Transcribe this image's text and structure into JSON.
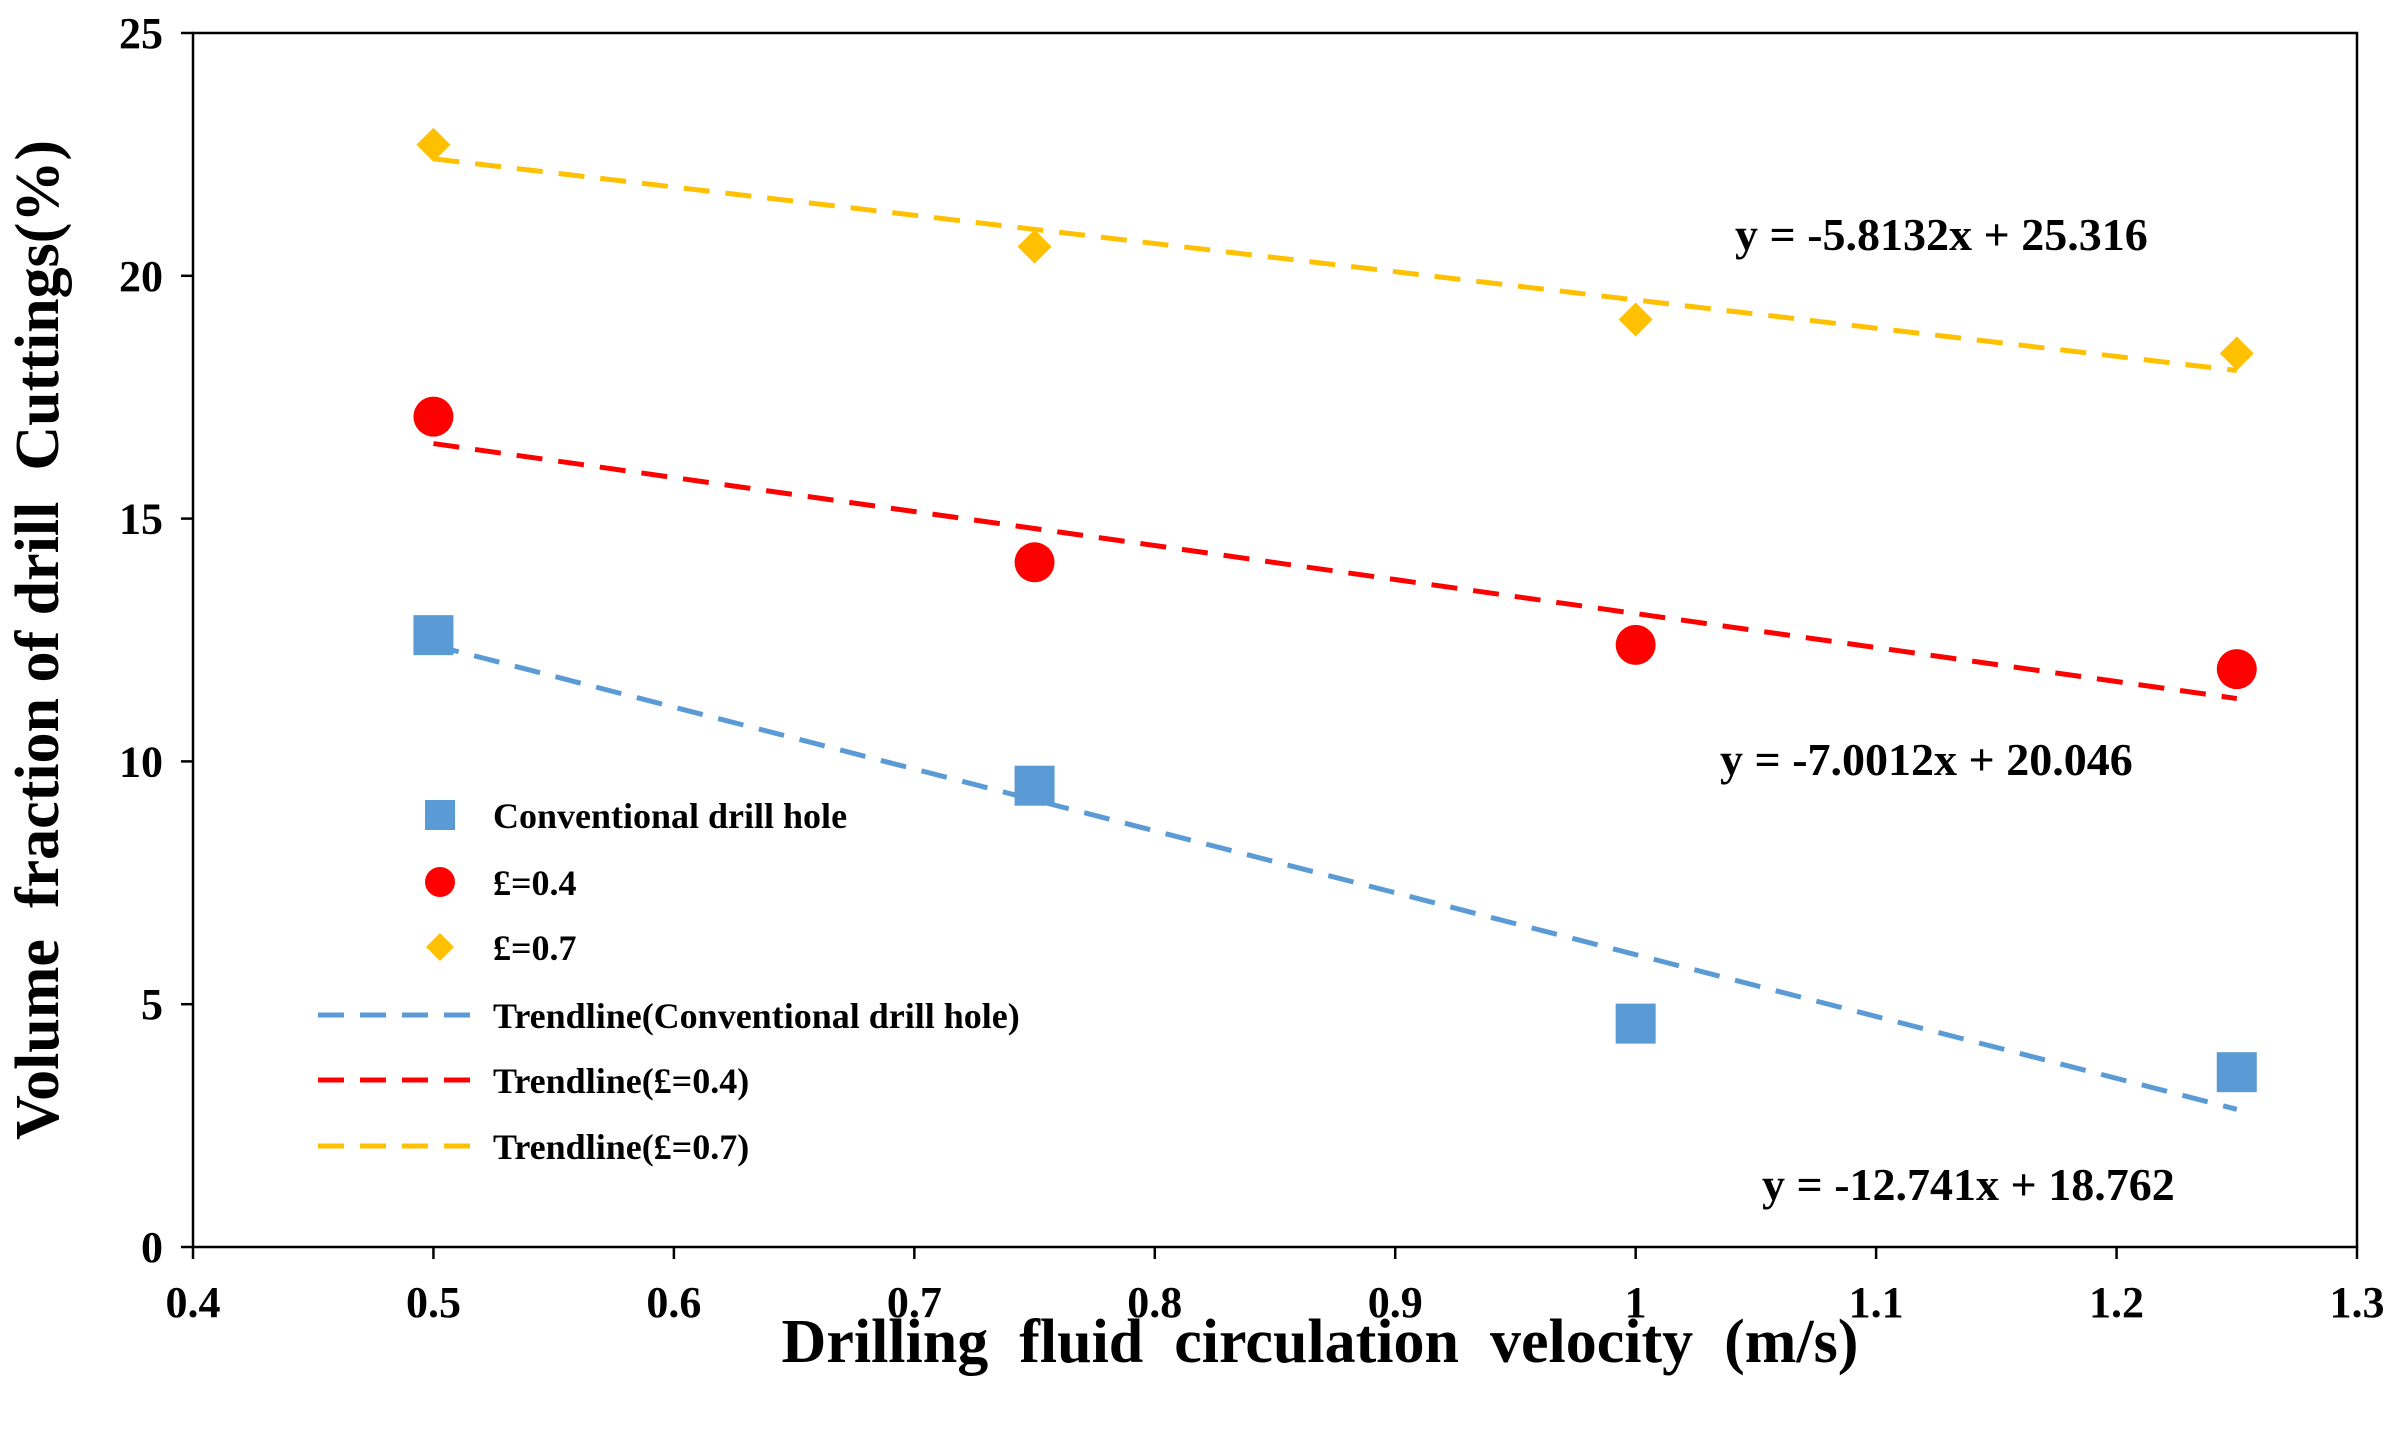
{
  "chart_data": {
    "type": "scatter",
    "title": "",
    "xlabel": "Drilling  fluid  circulation  velocity  (m/s)",
    "ylabel": "Volume  fraction of drill  Cuttings(%)",
    "xlim": [
      0.4,
      1.3
    ],
    "ylim": [
      0,
      25
    ],
    "grid": false,
    "x_ticks": [
      "0.4",
      "0.5",
      "0.6",
      "0.7",
      "0.8",
      "0.9",
      "1",
      "1.1",
      "1.2",
      "1.3"
    ],
    "y_ticks": [
      "0",
      "5",
      "10",
      "15",
      "20",
      "25"
    ],
    "x": [
      0.5,
      0.75,
      1.0,
      1.25
    ],
    "legend_position": "center-left",
    "series": [
      {
        "name": "Conventional drill hole",
        "marker": "square",
        "color": "#5B9BD5",
        "x": [
          0.5,
          0.75,
          1.0,
          1.25
        ],
        "values": [
          12.6,
          9.5,
          4.6,
          3.6
        ],
        "trendline": {
          "name": "Trendline(Conventional drill hole)",
          "slope": -12.741,
          "intercept": 18.762,
          "equation": "y = -12.741x + 18.762"
        }
      },
      {
        "name": "£=0.4",
        "marker": "circle",
        "color": "#FF0000",
        "x": [
          0.5,
          0.75,
          1.0,
          1.25
        ],
        "values": [
          17.1,
          14.1,
          12.4,
          11.9
        ],
        "trendline": {
          "name": "Trendline(£=0.4)",
          "slope": -7.0012,
          "intercept": 20.046,
          "equation": "y = -7.0012x + 20.046"
        }
      },
      {
        "name": "£=0.7",
        "marker": "diamond",
        "color": "#FFC000",
        "x": [
          0.5,
          0.75,
          1.0,
          1.25
        ],
        "values": [
          22.7,
          20.6,
          19.1,
          18.4
        ],
        "trendline": {
          "name": "Trendline(£=0.7)",
          "slope": -5.8132,
          "intercept": 25.316,
          "equation": "y = -5.8132x + 25.316"
        }
      }
    ]
  }
}
